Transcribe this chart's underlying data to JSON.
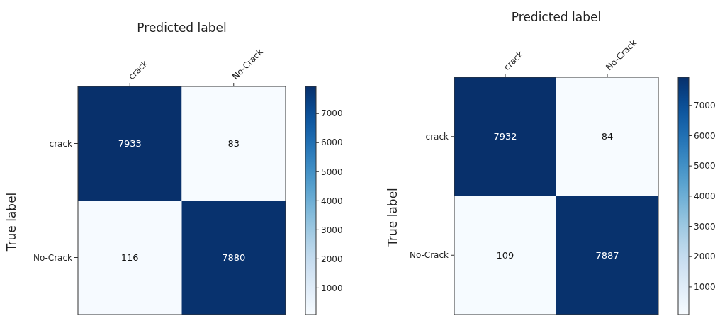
{
  "chart_data": [
    {
      "type": "heatmap",
      "xlabel": "Predicted label",
      "ylabel": "True label",
      "categories": [
        "crack",
        "No-Crack"
      ],
      "y_categories": [
        "crack",
        "No-Crack"
      ],
      "cells": [
        [
          7933,
          83
        ],
        [
          116,
          7880
        ]
      ],
      "clim": [
        83,
        7933
      ],
      "cticks": [
        1000,
        2000,
        3000,
        4000,
        5000,
        6000,
        7000
      ],
      "data_labels": true
    },
    {
      "type": "heatmap",
      "xlabel": "Predicted label",
      "ylabel": "True label",
      "categories": [
        "crack",
        "No-Crack"
      ],
      "y_categories": [
        "crack",
        "No-Crack"
      ],
      "cells": [
        [
          7932,
          84
        ],
        [
          109,
          7887
        ]
      ],
      "clim": [
        84,
        7932
      ],
      "cticks": [
        1000,
        2000,
        3000,
        4000,
        5000,
        6000,
        7000
      ],
      "data_labels": true
    }
  ]
}
